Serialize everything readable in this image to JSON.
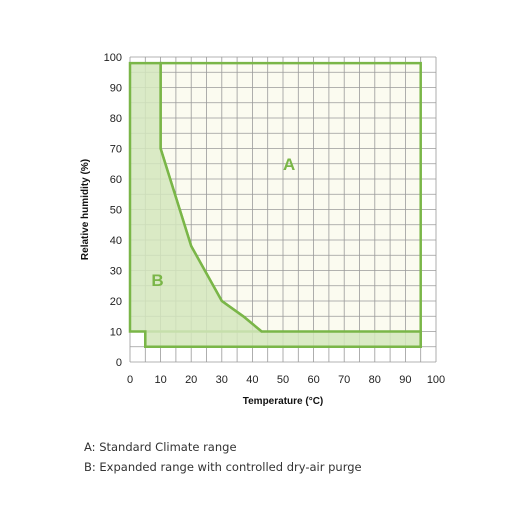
{
  "chart_data": {
    "type": "area",
    "xlabel": "Temperature (°C)",
    "ylabel": "Relative humidity (%)",
    "xlim": [
      0,
      100
    ],
    "ylim": [
      0,
      100
    ],
    "x_ticks": [
      0,
      10,
      20,
      30,
      40,
      50,
      60,
      70,
      80,
      90,
      100
    ],
    "y_ticks": [
      0,
      10,
      20,
      30,
      40,
      50,
      60,
      70,
      80,
      90,
      100
    ],
    "grid": true,
    "colors": {
      "line": "#7ab648",
      "fill": "#d3e6bd",
      "grid": "#9a9a9a",
      "region_a_bg": "#fbfbf0"
    },
    "regions": [
      {
        "label": "A",
        "boundary": [
          [
            10,
            98
          ],
          [
            95,
            98
          ],
          [
            95,
            5
          ],
          [
            5,
            5
          ],
          [
            5,
            10
          ],
          [
            43,
            10
          ],
          [
            37,
            15
          ],
          [
            30,
            20
          ],
          [
            20,
            38
          ],
          [
            10,
            70
          ],
          [
            10,
            98
          ]
        ]
      },
      {
        "label": "B",
        "boundary": [
          [
            0,
            98
          ],
          [
            10,
            98
          ],
          [
            10,
            70
          ],
          [
            20,
            38
          ],
          [
            30,
            20
          ],
          [
            37,
            15
          ],
          [
            43,
            10
          ],
          [
            95,
            10
          ],
          [
            95,
            5
          ],
          [
            5,
            5
          ],
          [
            5,
            10
          ],
          [
            0,
            10
          ],
          [
            0,
            98
          ]
        ]
      }
    ],
    "region_labels": [
      {
        "text": "A",
        "x": 52,
        "y": 63
      },
      {
        "text": "B",
        "x": 9,
        "y": 25
      }
    ]
  },
  "legend": {
    "a": "A: Standard Climate range",
    "b": "B: Expanded range with controlled dry-air purge"
  }
}
